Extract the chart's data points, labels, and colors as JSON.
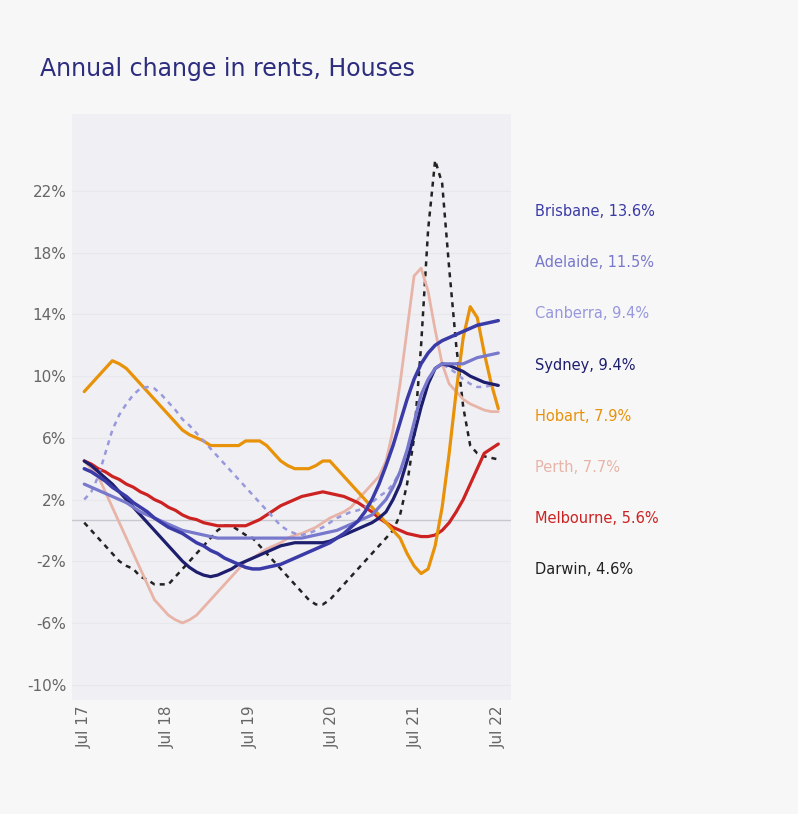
{
  "title": "Annual change in rents, Houses",
  "title_color": "#2d2d7e",
  "background_color": "#f7f7f8",
  "plot_bg_color": "#f0f0f4",
  "zero_line_color": "#c8c8d0",
  "grid_color": "#e8e8ec",
  "yticks": [
    -10,
    -6,
    -2,
    2,
    6,
    10,
    14,
    18,
    22
  ],
  "ytick_labels": [
    "-10%",
    "-6%",
    "-2%",
    "2%",
    "6%",
    "10%",
    "14%",
    "18%",
    "22%"
  ],
  "xtick_labels": [
    "Jul 17",
    "Jul 18",
    "Jul 19",
    "Jul 20",
    "Jul 21",
    "Jul 22"
  ],
  "ylim": [
    -11,
    27
  ],
  "legend": [
    {
      "label": "Brisbane, 13.6%",
      "color": "#3b3ba8"
    },
    {
      "label": "Adelaide, 11.5%",
      "color": "#7878cc"
    },
    {
      "label": "Canberra, 9.4%",
      "color": "#9898dd"
    },
    {
      "label": "Sydney, 9.4%",
      "color": "#1e1e6e"
    },
    {
      "label": "Hobart, 7.9%",
      "color": "#e8920a"
    },
    {
      "label": "Perth, 7.7%",
      "color": "#e8b4a8"
    },
    {
      "label": "Melbourne, 5.6%",
      "color": "#cc2222"
    },
    {
      "label": "Darwin, 4.6%",
      "color": "#222222"
    }
  ],
  "brisbane": [
    4.0,
    3.8,
    3.5,
    3.2,
    2.8,
    2.5,
    2.2,
    1.8,
    1.5,
    1.2,
    0.8,
    0.5,
    0.2,
    0.0,
    -0.2,
    -0.5,
    -0.8,
    -1.0,
    -1.3,
    -1.5,
    -1.8,
    -2.0,
    -2.2,
    -2.4,
    -2.5,
    -2.5,
    -2.4,
    -2.3,
    -2.2,
    -2.0,
    -1.8,
    -1.6,
    -1.4,
    -1.2,
    -1.0,
    -0.8,
    -0.5,
    -0.2,
    0.2,
    0.6,
    1.2,
    2.0,
    3.0,
    4.2,
    5.5,
    7.0,
    8.5,
    9.8,
    10.8,
    11.5,
    12.0,
    12.3,
    12.5,
    12.7,
    12.9,
    13.1,
    13.3,
    13.4,
    13.5,
    13.6
  ],
  "adelaide": [
    3.0,
    2.8,
    2.6,
    2.4,
    2.2,
    2.0,
    1.8,
    1.5,
    1.2,
    1.0,
    0.8,
    0.6,
    0.4,
    0.2,
    0.0,
    -0.1,
    -0.2,
    -0.3,
    -0.4,
    -0.5,
    -0.5,
    -0.5,
    -0.5,
    -0.5,
    -0.5,
    -0.5,
    -0.5,
    -0.5,
    -0.5,
    -0.5,
    -0.5,
    -0.5,
    -0.4,
    -0.3,
    -0.2,
    -0.1,
    0.0,
    0.2,
    0.4,
    0.6,
    0.8,
    1.0,
    1.5,
    2.0,
    2.8,
    3.8,
    5.2,
    7.0,
    8.8,
    9.8,
    10.5,
    10.8,
    10.8,
    10.8,
    10.8,
    11.0,
    11.2,
    11.3,
    11.4,
    11.5
  ],
  "canberra": [
    2.0,
    2.5,
    3.5,
    5.0,
    6.5,
    7.5,
    8.2,
    8.8,
    9.2,
    9.3,
    9.2,
    8.8,
    8.3,
    7.8,
    7.2,
    6.8,
    6.3,
    5.8,
    5.3,
    4.8,
    4.3,
    3.8,
    3.3,
    2.8,
    2.3,
    1.8,
    1.3,
    0.8,
    0.3,
    0.0,
    -0.2,
    -0.3,
    -0.2,
    0.0,
    0.2,
    0.5,
    0.8,
    1.0,
    1.2,
    1.3,
    1.5,
    1.8,
    2.2,
    2.5,
    3.0,
    3.8,
    5.0,
    6.5,
    8.0,
    9.5,
    10.5,
    10.8,
    10.5,
    10.2,
    9.8,
    9.5,
    9.3,
    9.3,
    9.4,
    9.4
  ],
  "sydney": [
    4.5,
    4.2,
    3.8,
    3.4,
    3.0,
    2.5,
    2.0,
    1.5,
    1.0,
    0.5,
    0.0,
    -0.5,
    -1.0,
    -1.5,
    -2.0,
    -2.4,
    -2.7,
    -2.9,
    -3.0,
    -2.9,
    -2.7,
    -2.5,
    -2.2,
    -2.0,
    -1.8,
    -1.6,
    -1.4,
    -1.2,
    -1.0,
    -0.9,
    -0.8,
    -0.8,
    -0.8,
    -0.8,
    -0.8,
    -0.7,
    -0.5,
    -0.3,
    -0.1,
    0.1,
    0.3,
    0.5,
    0.8,
    1.2,
    2.0,
    3.0,
    4.5,
    6.2,
    8.0,
    9.5,
    10.5,
    10.8,
    10.7,
    10.5,
    10.3,
    10.0,
    9.8,
    9.6,
    9.5,
    9.4
  ],
  "hobart": [
    9.0,
    9.5,
    10.0,
    10.5,
    11.0,
    10.8,
    10.5,
    10.0,
    9.5,
    9.0,
    8.5,
    8.0,
    7.5,
    7.0,
    6.5,
    6.2,
    6.0,
    5.8,
    5.5,
    5.5,
    5.5,
    5.5,
    5.5,
    5.8,
    5.8,
    5.8,
    5.5,
    5.0,
    4.5,
    4.2,
    4.0,
    4.0,
    4.0,
    4.2,
    4.5,
    4.5,
    4.0,
    3.5,
    3.0,
    2.5,
    2.0,
    1.5,
    1.0,
    0.5,
    0.0,
    -0.5,
    -1.5,
    -2.3,
    -2.8,
    -2.5,
    -1.0,
    1.5,
    5.0,
    9.0,
    12.5,
    14.5,
    13.8,
    11.5,
    9.5,
    7.9
  ],
  "perth": [
    4.5,
    4.0,
    3.5,
    2.5,
    1.5,
    0.5,
    -0.5,
    -1.5,
    -2.5,
    -3.5,
    -4.5,
    -5.0,
    -5.5,
    -5.8,
    -6.0,
    -5.8,
    -5.5,
    -5.0,
    -4.5,
    -4.0,
    -3.5,
    -3.0,
    -2.5,
    -2.0,
    -1.8,
    -1.5,
    -1.2,
    -1.0,
    -0.8,
    -0.5,
    -0.3,
    -0.2,
    0.0,
    0.2,
    0.5,
    0.8,
    1.0,
    1.2,
    1.5,
    2.0,
    2.5,
    3.0,
    3.5,
    4.5,
    6.5,
    9.5,
    13.0,
    16.5,
    17.0,
    15.5,
    13.0,
    10.8,
    9.5,
    9.0,
    8.5,
    8.2,
    8.0,
    7.8,
    7.7,
    7.7
  ],
  "melbourne": [
    4.5,
    4.3,
    4.0,
    3.8,
    3.5,
    3.3,
    3.0,
    2.8,
    2.5,
    2.3,
    2.0,
    1.8,
    1.5,
    1.3,
    1.0,
    0.8,
    0.7,
    0.5,
    0.4,
    0.3,
    0.3,
    0.3,
    0.3,
    0.3,
    0.5,
    0.7,
    1.0,
    1.3,
    1.6,
    1.8,
    2.0,
    2.2,
    2.3,
    2.4,
    2.5,
    2.4,
    2.3,
    2.2,
    2.0,
    1.8,
    1.5,
    1.2,
    0.8,
    0.5,
    0.2,
    0.0,
    -0.2,
    -0.3,
    -0.4,
    -0.4,
    -0.3,
    0.0,
    0.5,
    1.2,
    2.0,
    3.0,
    4.0,
    5.0,
    5.3,
    5.6
  ],
  "darwin": [
    0.5,
    0.0,
    -0.5,
    -1.0,
    -1.5,
    -2.0,
    -2.3,
    -2.5,
    -3.0,
    -3.2,
    -3.5,
    -3.5,
    -3.5,
    -3.0,
    -2.5,
    -2.0,
    -1.5,
    -1.0,
    -0.5,
    0.0,
    0.3,
    0.3,
    0.0,
    -0.3,
    -0.5,
    -1.0,
    -1.5,
    -2.0,
    -2.5,
    -3.0,
    -3.5,
    -4.0,
    -4.5,
    -4.8,
    -4.8,
    -4.5,
    -4.0,
    -3.5,
    -3.0,
    -2.5,
    -2.0,
    -1.5,
    -1.0,
    -0.5,
    0.0,
    1.0,
    3.0,
    6.0,
    12.0,
    19.5,
    24.0,
    22.5,
    17.0,
    12.0,
    8.0,
    5.5,
    5.0,
    4.8,
    4.7,
    4.6
  ]
}
